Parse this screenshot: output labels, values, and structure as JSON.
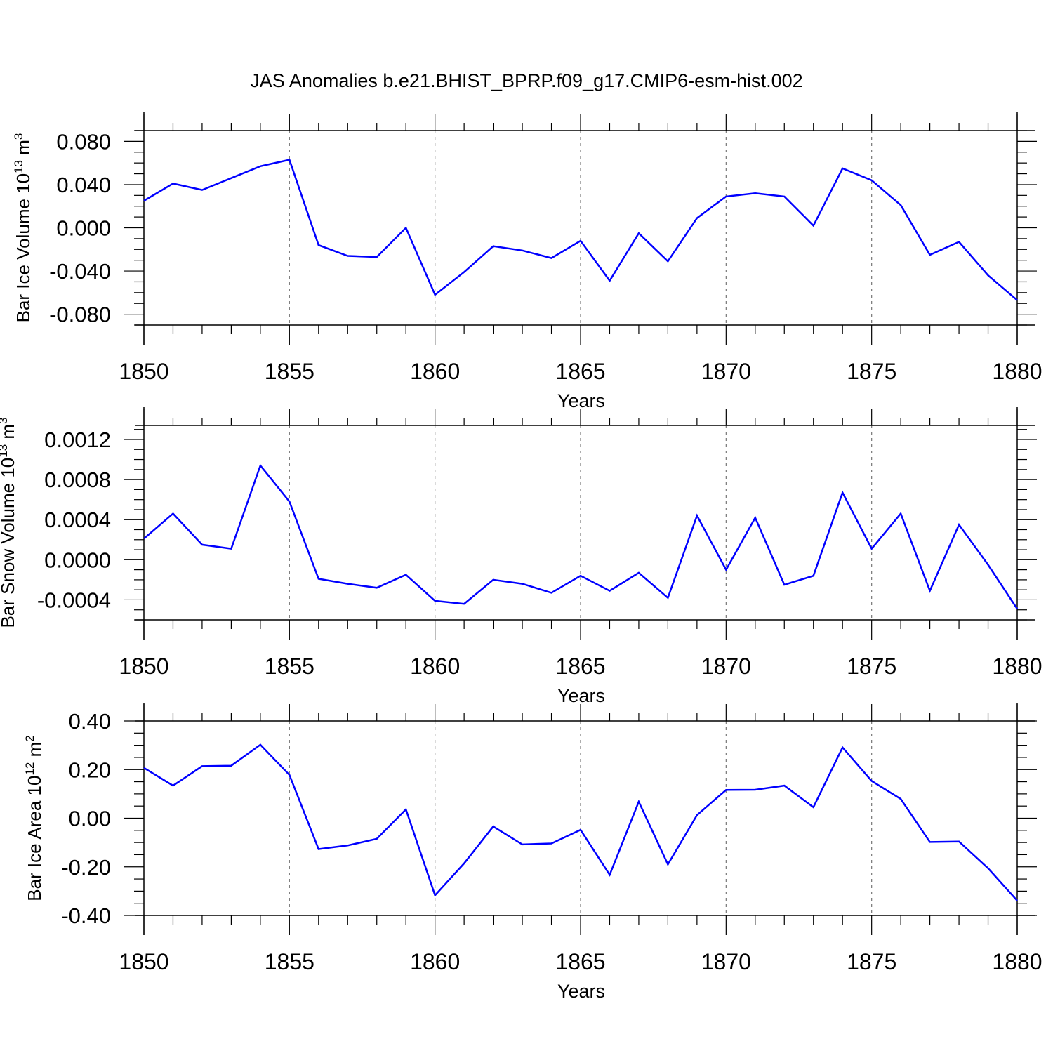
{
  "title": "JAS Anomalies b.e21.BHIST_BPRP.f09_g17.CMIP6-esm-hist.002",
  "colors": {
    "line": "#0000ff",
    "axis": "#000000",
    "grid": "#777777",
    "background": "#ffffff"
  },
  "chart_data": [
    {
      "type": "line",
      "xlabel": "Years",
      "ylabel_main": "Bar Ice Volume 10",
      "ylabel_exp": "13",
      "ylabel_unit": " m",
      "ylabel_unit_exp": "3",
      "xlim": [
        1850,
        1880
      ],
      "ylim": [
        -0.09,
        0.09
      ],
      "xticks": [
        1850,
        1855,
        1860,
        1865,
        1870,
        1875,
        1880
      ],
      "yticks": [
        -0.08,
        -0.04,
        0.0,
        0.04,
        0.08
      ],
      "ytick_labels": [
        "-0.080",
        "-0.040",
        "0.000",
        "0.040",
        "0.080"
      ],
      "grid": "vertical dashed at major x ticks",
      "series": [
        {
          "x": [
            1850,
            1851,
            1852,
            1853,
            1854,
            1855,
            1856,
            1857,
            1858,
            1859,
            1860,
            1861,
            1862,
            1863,
            1864,
            1865,
            1866,
            1867,
            1868,
            1869,
            1870,
            1871,
            1872,
            1873,
            1874,
            1875,
            1876,
            1877,
            1878,
            1879,
            1880
          ],
          "values": [
            0.025,
            0.041,
            0.035,
            0.046,
            0.057,
            0.063,
            -0.016,
            -0.026,
            -0.027,
            0.0,
            -0.062,
            -0.041,
            -0.017,
            -0.021,
            -0.028,
            -0.012,
            -0.049,
            -0.005,
            -0.031,
            0.009,
            0.029,
            0.032,
            0.029,
            0.002,
            0.055,
            0.044,
            0.021,
            -0.025,
            -0.013,
            -0.044,
            -0.067
          ]
        }
      ]
    },
    {
      "type": "line",
      "xlabel": "Years",
      "ylabel_main": "Bar Snow Volume 10",
      "ylabel_exp": "13",
      "ylabel_unit": " m",
      "ylabel_unit_exp": "3",
      "xlim": [
        1850,
        1880
      ],
      "ylim": [
        -0.0006,
        0.00134
      ],
      "xticks": [
        1850,
        1855,
        1860,
        1865,
        1870,
        1875,
        1880
      ],
      "yticks": [
        -0.0004,
        0.0,
        0.0004,
        0.0008,
        0.0012
      ],
      "ytick_labels": [
        "-0.0004",
        "0.0000",
        "0.0004",
        "0.0008",
        "0.0012"
      ],
      "grid": "vertical dashed at major x ticks",
      "series": [
        {
          "x": [
            1850,
            1851,
            1852,
            1853,
            1854,
            1855,
            1856,
            1857,
            1858,
            1859,
            1860,
            1861,
            1862,
            1863,
            1864,
            1865,
            1866,
            1867,
            1868,
            1869,
            1870,
            1871,
            1872,
            1873,
            1874,
            1875,
            1876,
            1877,
            1878,
            1879,
            1880
          ],
          "values": [
            0.00021,
            0.00046,
            0.00015,
            0.00011,
            0.00094,
            0.00058,
            -0.00019,
            -0.00024,
            -0.00028,
            -0.00015,
            -0.00041,
            -0.00044,
            -0.0002,
            -0.00024,
            -0.00033,
            -0.00016,
            -0.00031,
            -0.00013,
            -0.00038,
            0.00044,
            -0.0001,
            0.00042,
            -0.00025,
            -0.00016,
            0.00067,
            0.00011,
            0.00046,
            -0.00031,
            0.00035,
            -5e-05,
            -0.00049
          ]
        }
      ]
    },
    {
      "type": "line",
      "xlabel": "Years",
      "ylabel_main": "Bar Ice Area 10",
      "ylabel_exp": "12",
      "ylabel_unit": " m",
      "ylabel_unit_exp": "2",
      "xlim": [
        1850,
        1880
      ],
      "ylim": [
        -0.4,
        0.4
      ],
      "xticks": [
        1850,
        1855,
        1860,
        1865,
        1870,
        1875,
        1880
      ],
      "yticks": [
        -0.4,
        -0.2,
        0.0,
        0.2,
        0.4
      ],
      "ytick_labels": [
        "-0.40",
        "-0.20",
        "0.00",
        "0.20",
        "0.40"
      ],
      "grid": "vertical dashed at major x ticks",
      "series": [
        {
          "x": [
            1850,
            1851,
            1852,
            1853,
            1854,
            1855,
            1856,
            1857,
            1858,
            1859,
            1860,
            1861,
            1862,
            1863,
            1864,
            1865,
            1866,
            1867,
            1868,
            1869,
            1870,
            1871,
            1872,
            1873,
            1874,
            1875,
            1876,
            1877,
            1878,
            1879,
            1880
          ],
          "values": [
            0.207,
            0.134,
            0.214,
            0.216,
            0.302,
            0.178,
            -0.127,
            -0.112,
            -0.085,
            0.036,
            -0.317,
            -0.186,
            -0.034,
            -0.108,
            -0.104,
            -0.048,
            -0.233,
            0.068,
            -0.19,
            0.013,
            0.116,
            0.117,
            0.134,
            0.045,
            0.291,
            0.153,
            0.079,
            -0.098,
            -0.096,
            -0.206,
            -0.339
          ]
        }
      ]
    }
  ]
}
